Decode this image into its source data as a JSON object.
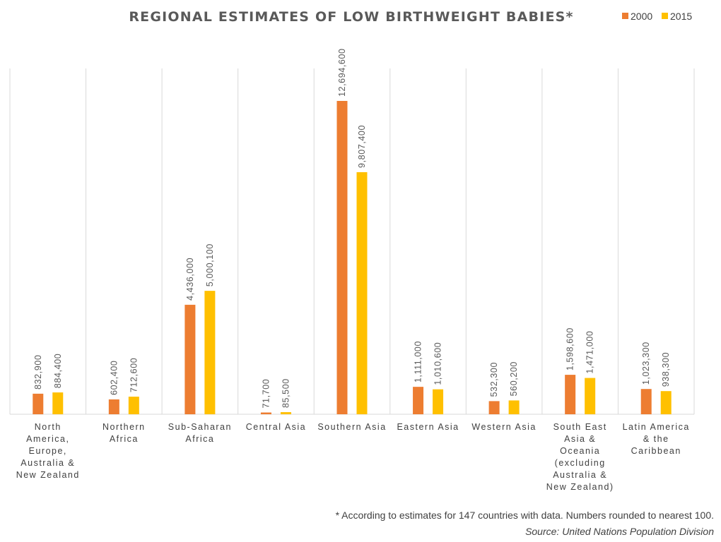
{
  "chart_data": {
    "type": "bar",
    "title": "REGIONAL ESTIMATES OF LOW BIRTHWEIGHT BABIES*",
    "categories": [
      "North America, Europe, Australia & New Zealand",
      "Northern Africa",
      "Sub-Saharan Africa",
      "Central Asia",
      "Southern Asia",
      "Eastern Asia",
      "Western Asia",
      "South East Asia & Oceania (excluding Australia & New Zealand)",
      "Latin America & the Caribbean"
    ],
    "category_lines": [
      [
        "North",
        "America,",
        "Europe,",
        "Australia &",
        "New Zealand"
      ],
      [
        "Northern",
        "Africa"
      ],
      [
        "Sub-Saharan",
        "Africa"
      ],
      [
        "Central Asia"
      ],
      [
        "Southern Asia"
      ],
      [
        "Eastern Asia"
      ],
      [
        "Western Asia"
      ],
      [
        "South East",
        "Asia &",
        "Oceania",
        "(excluding",
        "Australia &",
        "New Zealand)"
      ],
      [
        "Latin America",
        "& the",
        "Caribbean"
      ]
    ],
    "series": [
      {
        "name": "2000",
        "color": "#ed7d31",
        "values": [
          832900,
          602400,
          4436000,
          71700,
          12694600,
          1111000,
          532300,
          1598600,
          1023300
        ],
        "labels": [
          "832,900",
          "602,400",
          "4,436,000",
          "71,700",
          "12,694,600",
          "1,111,000",
          "532,300",
          "1,598,600",
          "1,023,300"
        ]
      },
      {
        "name": "2015",
        "color": "#ffc000",
        "values": [
          884400,
          712600,
          5000100,
          85500,
          9807400,
          1010600,
          560200,
          1471000,
          938300
        ],
        "labels": [
          "884,400",
          "712,600",
          "5,000,100",
          "85,500",
          "9,807,400",
          "1,010,600",
          "560,200",
          "1,471,000",
          "938,300"
        ]
      }
    ],
    "ylim": [
      0,
      14000000
    ],
    "legend_position": "top-right",
    "grid": "vertical category separators"
  },
  "footnote": "* According to estimates for 147 countries with data. Numbers rounded to nearest 100.",
  "source": "Source: United Nations Population Division"
}
